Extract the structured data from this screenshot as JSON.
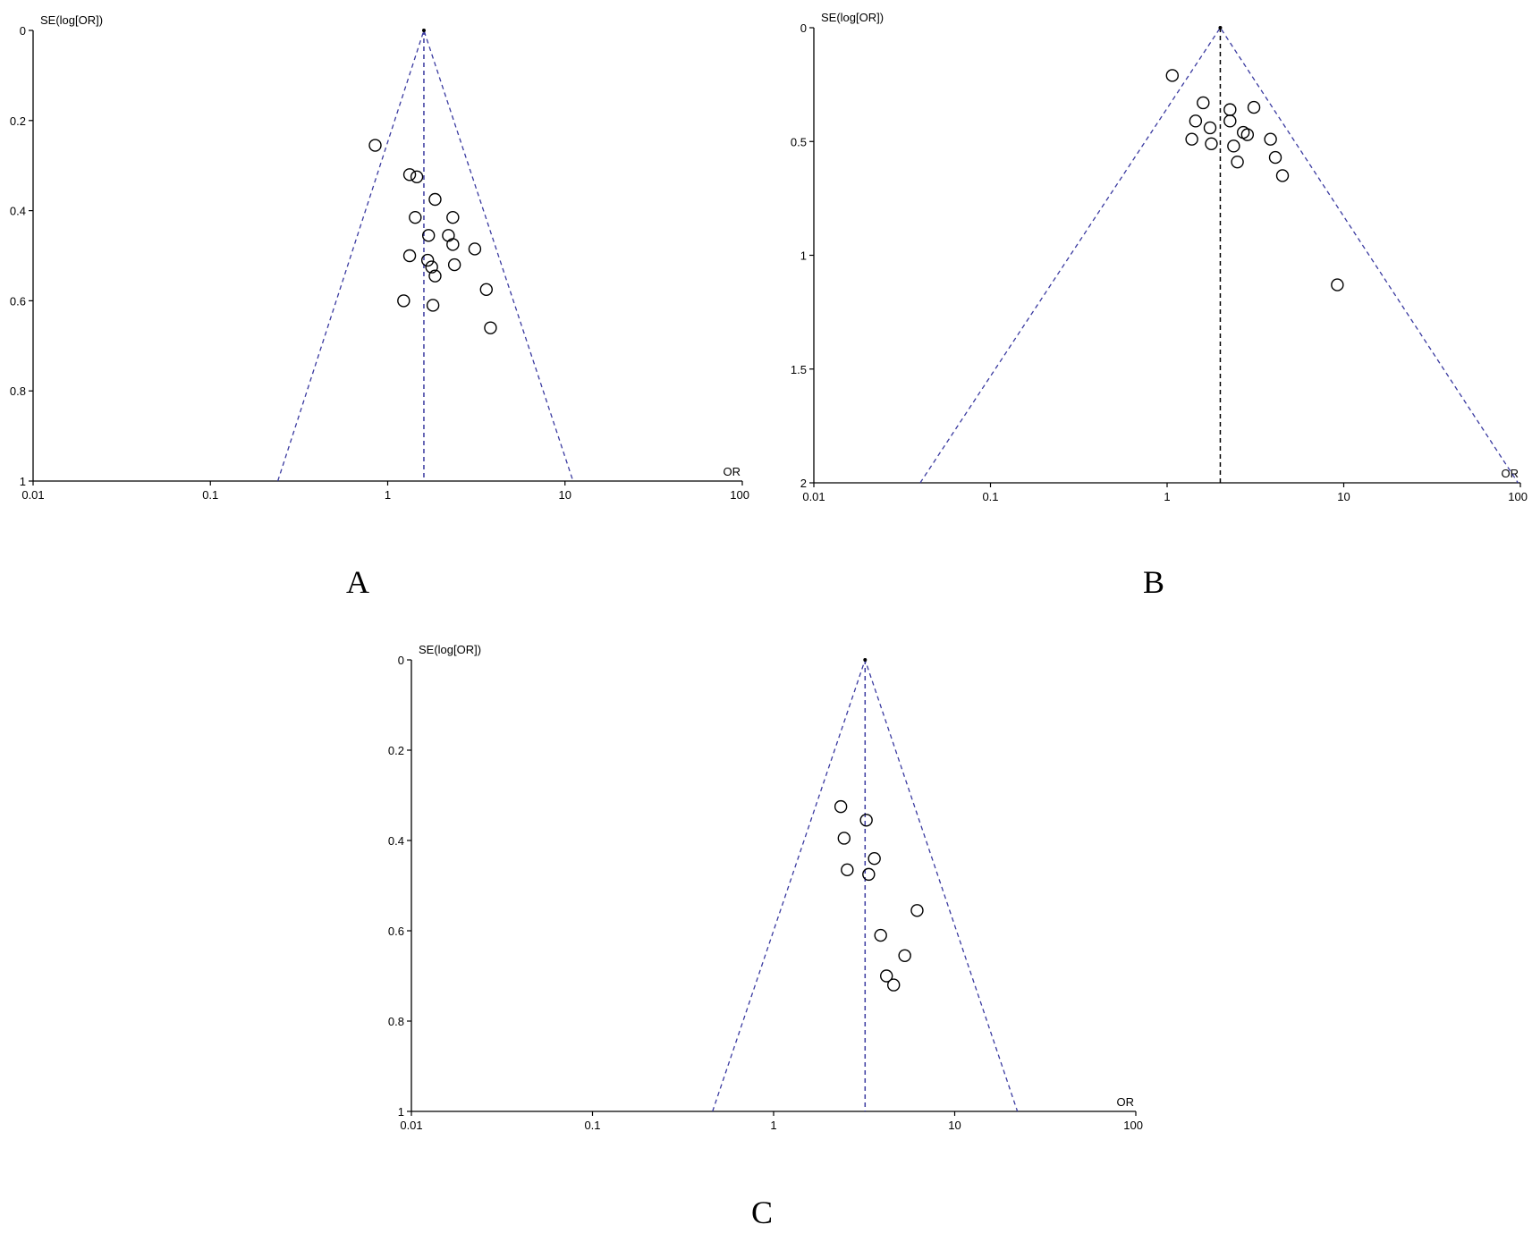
{
  "colors": {
    "funnel": "#3a3aa0",
    "pooled_A": "#3a3aa0",
    "pooled_B": "#000000",
    "pooled_C": "#3a3aa0",
    "points": "#000000"
  },
  "chart_data": [
    {
      "type": "scatter",
      "panel_label": "A",
      "ylabel": "SE(log[OR])",
      "xlabel": "OR",
      "xscale": "log",
      "xlim": [
        0.01,
        100
      ],
      "ylim": [
        0,
        1
      ],
      "y_inverted": true,
      "x_ticks": [
        "0.01",
        "0.1",
        "1",
        "10",
        "100"
      ],
      "y_ticks": [
        "0",
        "0.2",
        "0.4",
        "0.6",
        "0.8",
        "1"
      ],
      "pooled_or": 1.6,
      "funnel_base_x": [
        0.24,
        11.1
      ],
      "points": [
        {
          "x": 0.85,
          "y": 0.255
        },
        {
          "x": 1.33,
          "y": 0.32
        },
        {
          "x": 1.46,
          "y": 0.325
        },
        {
          "x": 1.85,
          "y": 0.375
        },
        {
          "x": 1.43,
          "y": 0.415
        },
        {
          "x": 2.33,
          "y": 0.415
        },
        {
          "x": 1.7,
          "y": 0.455
        },
        {
          "x": 2.2,
          "y": 0.455
        },
        {
          "x": 2.33,
          "y": 0.475
        },
        {
          "x": 3.1,
          "y": 0.485
        },
        {
          "x": 1.33,
          "y": 0.5
        },
        {
          "x": 1.68,
          "y": 0.51
        },
        {
          "x": 1.77,
          "y": 0.525
        },
        {
          "x": 2.38,
          "y": 0.52
        },
        {
          "x": 1.85,
          "y": 0.545
        },
        {
          "x": 3.6,
          "y": 0.575
        },
        {
          "x": 1.23,
          "y": 0.6
        },
        {
          "x": 1.8,
          "y": 0.61
        },
        {
          "x": 3.8,
          "y": 0.66
        }
      ]
    },
    {
      "type": "scatter",
      "panel_label": "B",
      "ylabel": "SE(log[OR])",
      "xlabel": "OR",
      "xscale": "log",
      "xlim": [
        0.01,
        100
      ],
      "ylim": [
        0,
        2
      ],
      "y_inverted": true,
      "x_ticks": [
        "0.01",
        "0.1",
        "1",
        "10",
        "100"
      ],
      "y_ticks": [
        "0",
        "0.5",
        "1",
        "1.5",
        "2"
      ],
      "pooled_or": 2.0,
      "funnel_base_x": [
        0.04,
        97
      ],
      "points": [
        {
          "x": 1.07,
          "y": 0.21
        },
        {
          "x": 1.6,
          "y": 0.33
        },
        {
          "x": 2.27,
          "y": 0.36
        },
        {
          "x": 3.1,
          "y": 0.35
        },
        {
          "x": 1.45,
          "y": 0.41
        },
        {
          "x": 2.27,
          "y": 0.41
        },
        {
          "x": 1.75,
          "y": 0.44
        },
        {
          "x": 2.7,
          "y": 0.46
        },
        {
          "x": 2.85,
          "y": 0.47
        },
        {
          "x": 3.85,
          "y": 0.49
        },
        {
          "x": 1.38,
          "y": 0.49
        },
        {
          "x": 1.78,
          "y": 0.51
        },
        {
          "x": 2.38,
          "y": 0.52
        },
        {
          "x": 4.1,
          "y": 0.57
        },
        {
          "x": 2.5,
          "y": 0.59
        },
        {
          "x": 4.5,
          "y": 0.65
        },
        {
          "x": 9.2,
          "y": 1.13
        }
      ]
    },
    {
      "type": "scatter",
      "panel_label": "C",
      "ylabel": "SE(log[OR])",
      "xlabel": "OR",
      "xscale": "log",
      "xlim": [
        0.01,
        100
      ],
      "ylim": [
        0,
        1
      ],
      "y_inverted": true,
      "x_ticks": [
        "0.01",
        "0.1",
        "1",
        "10",
        "100"
      ],
      "y_ticks": [
        "0",
        "0.2",
        "0.4",
        "0.6",
        "0.8",
        "1"
      ],
      "pooled_or": 3.2,
      "funnel_base_x": [
        0.46,
        22.2
      ],
      "points": [
        {
          "x": 2.35,
          "y": 0.325
        },
        {
          "x": 3.25,
          "y": 0.355
        },
        {
          "x": 2.45,
          "y": 0.395
        },
        {
          "x": 3.6,
          "y": 0.44
        },
        {
          "x": 2.55,
          "y": 0.465
        },
        {
          "x": 3.35,
          "y": 0.475
        },
        {
          "x": 6.2,
          "y": 0.555
        },
        {
          "x": 3.9,
          "y": 0.61
        },
        {
          "x": 5.3,
          "y": 0.655
        },
        {
          "x": 4.2,
          "y": 0.7
        },
        {
          "x": 4.6,
          "y": 0.72
        }
      ]
    }
  ]
}
